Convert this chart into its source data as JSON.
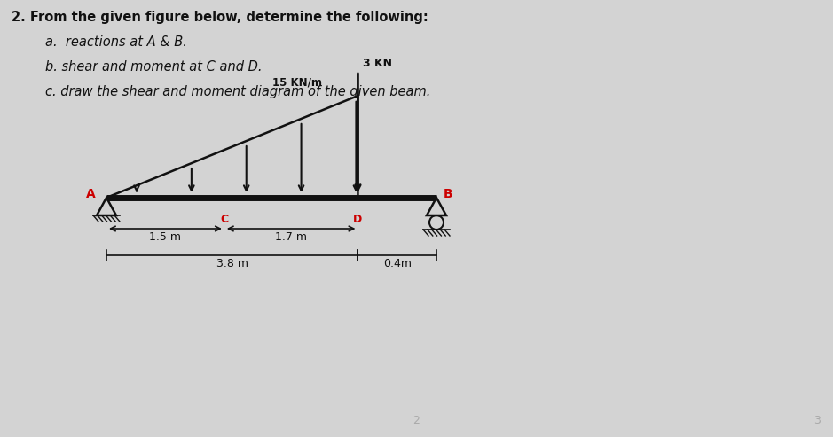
{
  "bg_color": "#d3d3d3",
  "title_line1": "2. From the given figure below, determine the following:",
  "title_line2": "a.  reactions at A & B.",
  "title_line3": "b. shear and moment at C and D.",
  "title_line4": "c. draw the shear and moment diagram of the given beam.",
  "load_label": "15 KN/m",
  "point_load_label": "3 KN",
  "dim_AC": "1.5 m",
  "dim_CD": "1.7 m",
  "dim_AB": "3.8 m",
  "dim_DB": "0.4m",
  "label_A": "A",
  "label_B": "B",
  "label_C": "C",
  "label_D": "D",
  "page_num_left": "2",
  "page_num_right": "3",
  "beam_color": "#111111",
  "label_color_red": "#cc0000",
  "text_color": "#111111",
  "beam_lw": 5,
  "tri_load_lw": 1.8,
  "support_lw": 1.8,
  "dim_lw": 1.2,
  "arrow_lw": 1.5,
  "point_arrow_lw": 2.0,
  "n_dist_arrows": 5,
  "fig_w": 9.39,
  "fig_h": 4.93,
  "dpi": 100
}
